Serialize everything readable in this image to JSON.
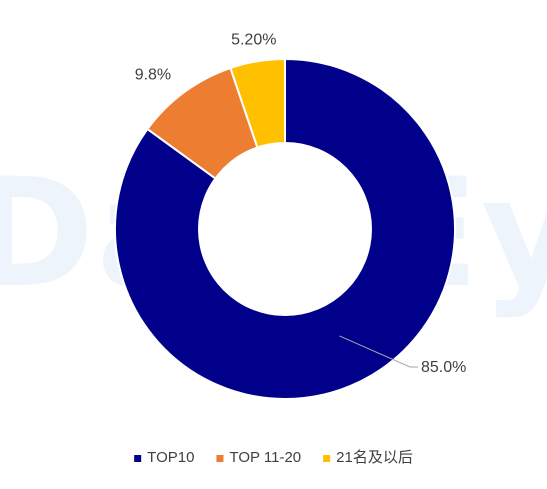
{
  "chart_data": {
    "type": "pie",
    "variant": "donut",
    "categories": [
      "TOP10",
      "TOP 11-20",
      "21名及以后"
    ],
    "values": [
      85.0,
      9.8,
      5.2
    ],
    "labels": [
      "85.0%",
      "9.8%",
      "5.20%"
    ],
    "colors": [
      "#00008b",
      "#ed7d31",
      "#ffc000"
    ],
    "legend_position": "bottom",
    "title": ""
  },
  "watermark": {
    "text": "DataEye"
  }
}
